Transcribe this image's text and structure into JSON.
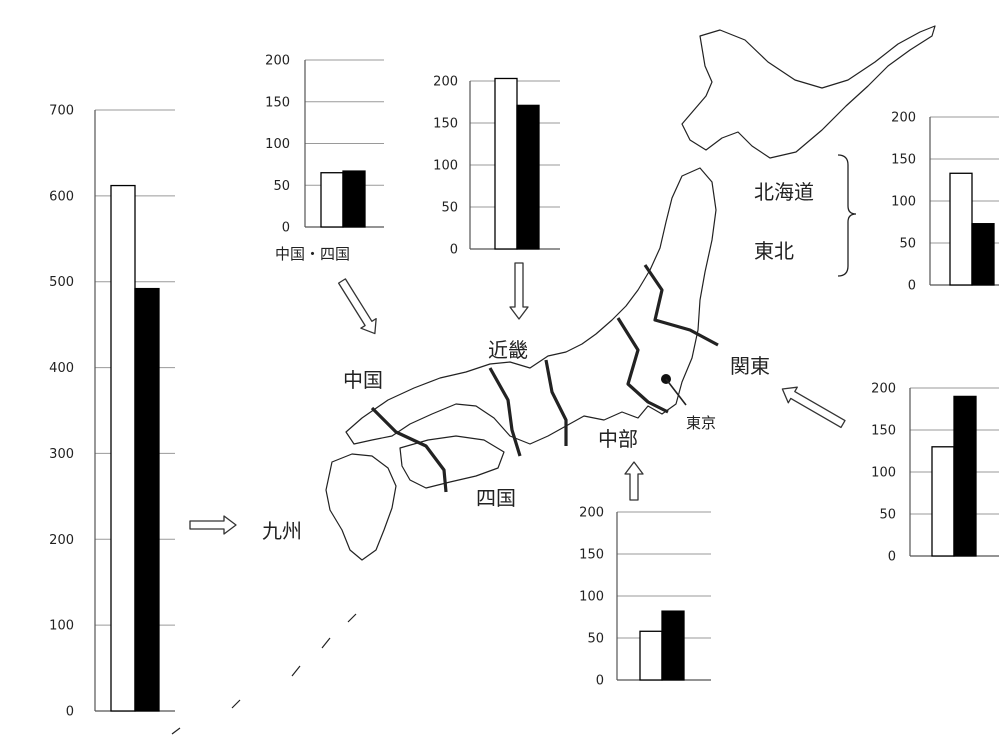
{
  "regions": {
    "chugoku_shikoku_label": "中国・四国",
    "chugoku": "中国",
    "shikoku": "四国",
    "kinki": "近畿",
    "chubu": "中部",
    "kanto": "関東",
    "tokyo": "東京",
    "kyushu": "九州",
    "hokkaido": "北海道",
    "tohoku": "東北"
  },
  "chart_data": [
    {
      "type": "bar",
      "region": "九州",
      "ylim": [
        0,
        700
      ],
      "yticks": [
        "0",
        "100",
        "200",
        "300",
        "400",
        "500",
        "600",
        "700"
      ],
      "values": [
        612,
        492
      ],
      "bar_colors": [
        "#ffffff",
        "#000000"
      ]
    },
    {
      "type": "bar",
      "region": "中国・四国",
      "ylim": [
        0,
        200
      ],
      "yticks": [
        "0",
        "50",
        "100",
        "150",
        "200"
      ],
      "values": [
        65,
        67
      ],
      "bar_colors": [
        "#ffffff",
        "#000000"
      ]
    },
    {
      "type": "bar",
      "region": "近畿",
      "ylim": [
        0,
        200
      ],
      "yticks": [
        "0",
        "50",
        "100",
        "150",
        "200"
      ],
      "values": [
        203,
        171
      ],
      "bar_colors": [
        "#ffffff",
        "#000000"
      ]
    },
    {
      "type": "bar",
      "region": "北海道・東北",
      "ylim": [
        0,
        200
      ],
      "yticks": [
        "0",
        "50",
        "100",
        "150",
        "200"
      ],
      "values": [
        133,
        73
      ],
      "bar_colors": [
        "#ffffff",
        "#000000"
      ]
    },
    {
      "type": "bar",
      "region": "関東",
      "ylim": [
        0,
        200
      ],
      "yticks": [
        "0",
        "50",
        "100",
        "150",
        "200"
      ],
      "values": [
        130,
        190
      ],
      "bar_colors": [
        "#ffffff",
        "#000000"
      ]
    },
    {
      "type": "bar",
      "region": "中部",
      "ylim": [
        0,
        200
      ],
      "yticks": [
        "0",
        "50",
        "100",
        "150",
        "200"
      ],
      "values": [
        58,
        82
      ],
      "bar_colors": [
        "#ffffff",
        "#000000"
      ]
    }
  ]
}
